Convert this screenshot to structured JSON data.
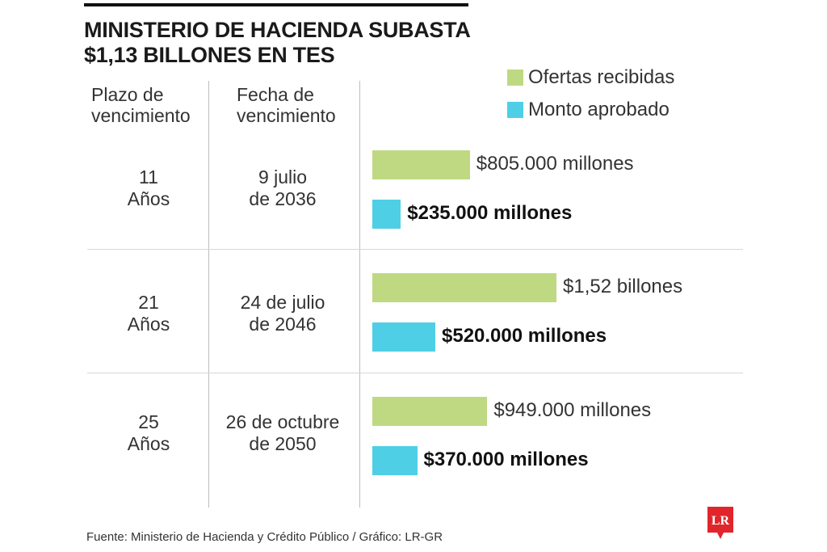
{
  "title": {
    "line1": "MINISTERIO DE HACIENDA SUBASTA",
    "line2": "$1,13 BILLONES EN TES"
  },
  "headers": {
    "plazo": {
      "line1": "Plazo de",
      "line2": "vencimiento"
    },
    "fecha": {
      "line1": "Fecha de",
      "line2": "vencimiento"
    }
  },
  "footer": "Fuente: Ministerio de Hacienda y Crédito Público / Gráfico: LR-GR",
  "logo": "LR",
  "colors": {
    "ofertas": "#bfd983",
    "monto": "#4fcfe6",
    "logo": "#e0262b"
  },
  "chart_data": {
    "type": "bar",
    "orientation": "horizontal",
    "unit": "millones de pesos",
    "legend_position": "top-right",
    "categories": [
      {
        "plazo": [
          "11",
          "Años"
        ],
        "fecha": [
          "9 julio",
          "de 2036"
        ]
      },
      {
        "plazo": [
          "21",
          "Años"
        ],
        "fecha": [
          "24 de julio",
          "de 2046"
        ]
      },
      {
        "plazo": [
          "25",
          "Años"
        ],
        "fecha": [
          "26 de octubre",
          "de 2050"
        ]
      }
    ],
    "series": [
      {
        "name": "Ofertas recibidas",
        "values": [
          805000,
          1520000,
          949000
        ],
        "labels": [
          "$805.000 millones",
          "$1,52 billones",
          "$949.000 millones"
        ]
      },
      {
        "name": "Monto aprobado",
        "values": [
          235000,
          520000,
          370000
        ],
        "labels": [
          "$235.000 millones",
          "$520.000 millones",
          "$370.000 millones"
        ]
      }
    ]
  }
}
